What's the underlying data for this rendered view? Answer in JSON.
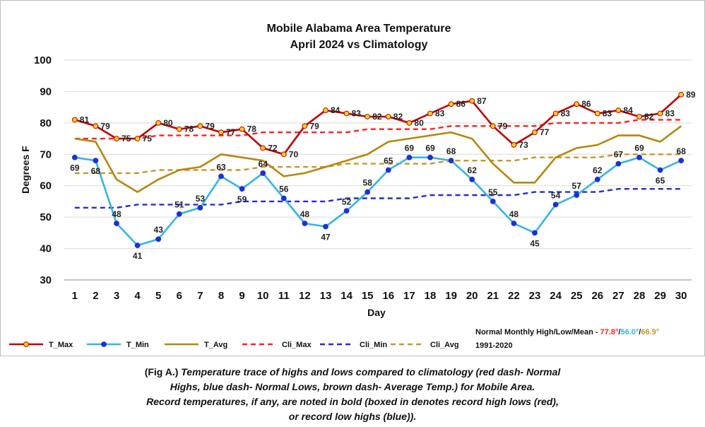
{
  "chart_data": {
    "type": "line",
    "title": "Mobile Alabama Area Temperature",
    "subtitle": "April 2024 vs Climatology",
    "xlabel": "Day",
    "ylabel": "Degrees F",
    "ylim": [
      30,
      100
    ],
    "yticks": [
      "30",
      "40",
      "50",
      "60",
      "70",
      "80",
      "90",
      "100"
    ],
    "grid": true,
    "legend_position": "bottom",
    "categories": [
      "1",
      "2",
      "3",
      "4",
      "5",
      "6",
      "7",
      "8",
      "9",
      "10",
      "11",
      "12",
      "13",
      "14",
      "15",
      "16",
      "17",
      "18",
      "19",
      "20",
      "21",
      "22",
      "23",
      "24",
      "25",
      "26",
      "27",
      "28",
      "29",
      "30"
    ],
    "series": [
      {
        "name": "T_Max",
        "color": "#c00000",
        "style": "solid-markers",
        "labels": true,
        "values": [
          81,
          79,
          75,
          75,
          80,
          78,
          79,
          77,
          78,
          72,
          70,
          79,
          84,
          83,
          82,
          82,
          80,
          83,
          86,
          87,
          79,
          73,
          77,
          83,
          86,
          83,
          84,
          82,
          83,
          89
        ]
      },
      {
        "name": "T_Min",
        "color": "#33b5e5",
        "style": "solid-markers",
        "labels": true,
        "values": [
          69,
          68,
          48,
          41,
          43,
          51,
          53,
          63,
          59,
          64,
          56,
          48,
          47,
          52,
          58,
          65,
          69,
          69,
          68,
          62,
          55,
          48,
          45,
          54,
          57,
          62,
          67,
          69,
          65,
          68
        ]
      },
      {
        "name": "T_Avg",
        "color": "#b8860b",
        "style": "solid",
        "values": [
          75,
          74,
          62,
          58,
          62,
          65,
          66,
          70,
          69,
          68,
          63,
          64,
          66,
          68,
          70,
          74,
          75,
          76,
          77,
          75,
          67,
          61,
          61,
          69,
          72,
          73,
          76,
          76,
          74,
          79
        ]
      },
      {
        "name": "Cli_Max",
        "color": "#ff1f1f",
        "style": "dashed",
        "values": [
          75,
          75,
          75,
          75,
          76,
          76,
          76,
          76,
          76,
          77,
          77,
          77,
          77,
          77,
          78,
          78,
          78,
          78,
          79,
          79,
          79,
          79,
          79,
          80,
          80,
          80,
          80,
          81,
          81,
          81
        ]
      },
      {
        "name": "Cli_Min",
        "color": "#1f2fd6",
        "style": "dashed",
        "values": [
          53,
          53,
          53,
          54,
          54,
          54,
          54,
          54,
          55,
          55,
          55,
          55,
          55,
          56,
          56,
          56,
          56,
          57,
          57,
          57,
          57,
          57,
          58,
          58,
          58,
          58,
          59,
          59,
          59,
          59
        ]
      },
      {
        "name": "Cli_Avg",
        "color": "#c8962a",
        "style": "dashed",
        "values": [
          64,
          64,
          64,
          64,
          65,
          65,
          65,
          65,
          65,
          66,
          66,
          66,
          66,
          67,
          67,
          67,
          67,
          67,
          68,
          68,
          68,
          68,
          69,
          69,
          69,
          69,
          70,
          70,
          70,
          70
        ]
      }
    ],
    "normals_note": {
      "prefix": "Normal Monthly High/Low/Mean - ",
      "high": "77.8°",
      "high_color": "#ff1f1f",
      "low": "56.0°",
      "low_color": "#33b5e5",
      "mean": "66.9°",
      "mean_color": "#c8962a",
      "sep": "/",
      "period": "1991-2020"
    }
  },
  "caption": {
    "line1_prefix": "(Fig A.) ",
    "line1_italic": "Temperature trace of highs and lows compared to climatology (red dash- Normal",
    "line2": "Highs, blue dash- Normal Lows, brown dash- Average Temp.) for Mobile Area.",
    "line3": "Record temperatures, if any, are noted in bold (boxed in denotes record high lows (red),",
    "line4": "or record low highs (blue))."
  }
}
